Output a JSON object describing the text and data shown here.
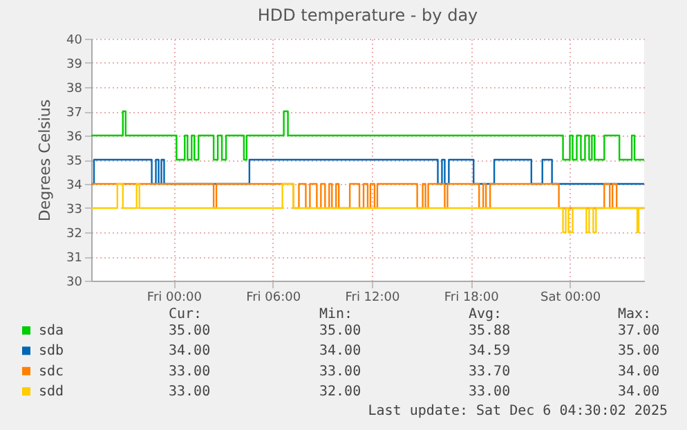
{
  "chart_data": {
    "type": "step",
    "title": "HDD temperature - by day",
    "ylabel": "Degrees Celsius",
    "xlim": [
      "2025-12-04T19:00",
      "2025-12-06T04:30"
    ],
    "xticks": [
      {
        "value": "2025-12-05T00:00",
        "label": "Fri 00:00"
      },
      {
        "value": "2025-12-05T06:00",
        "label": "Fri 06:00"
      },
      {
        "value": "2025-12-05T12:00",
        "label": "Fri 12:00"
      },
      {
        "value": "2025-12-05T18:00",
        "label": "Fri 18:00"
      },
      {
        "value": "2025-12-06T00:00",
        "label": "Sat 00:00"
      }
    ],
    "ylim": [
      30,
      40
    ],
    "yticks": [
      30,
      31,
      32,
      33,
      34,
      35,
      36,
      37,
      38,
      39,
      40
    ],
    "grid": true,
    "legend": "bottom",
    "series": [
      {
        "name": "sda",
        "color": "#00cc00",
        "x": [
          "2025-12-04T19:00",
          "2025-12-04T20:55",
          "2025-12-04T21:05",
          "2025-12-05T00:10",
          "2025-12-05T00:40",
          "2025-12-05T00:50",
          "2025-12-05T01:05",
          "2025-12-05T01:15",
          "2025-12-05T01:30",
          "2025-12-05T02:25",
          "2025-12-05T02:40",
          "2025-12-05T02:55",
          "2025-12-05T03:10",
          "2025-12-05T04:15",
          "2025-12-05T04:25",
          "2025-12-05T06:40",
          "2025-12-05T06:55",
          "2025-12-05T23:35",
          "2025-12-06T00:00",
          "2025-12-06T00:10",
          "2025-12-06T00:25",
          "2025-12-06T00:40",
          "2025-12-06T00:55",
          "2025-12-06T01:10",
          "2025-12-06T01:20",
          "2025-12-06T01:30",
          "2025-12-06T02:05",
          "2025-12-06T03:00",
          "2025-12-06T03:45",
          "2025-12-06T03:55",
          "2025-12-06T04:30"
        ],
        "values": [
          36,
          37,
          36,
          35,
          36,
          35,
          36,
          35,
          36,
          35,
          36,
          35,
          36,
          35,
          36,
          37,
          36,
          35,
          36,
          35,
          36,
          35,
          36,
          35,
          36,
          35,
          36,
          35,
          36,
          35,
          35
        ]
      },
      {
        "name": "sdb",
        "color": "#0066b3",
        "x": [
          "2025-12-04T19:00",
          "2025-12-04T19:10",
          "2025-12-04T22:40",
          "2025-12-04T22:55",
          "2025-12-04T23:05",
          "2025-12-04T23:15",
          "2025-12-04T23:25",
          "2025-12-05T04:35",
          "2025-12-05T16:00",
          "2025-12-05T16:15",
          "2025-12-05T16:25",
          "2025-12-05T16:40",
          "2025-12-05T18:10",
          "2025-12-05T19:25",
          "2025-12-05T21:40",
          "2025-12-05T22:20",
          "2025-12-05T22:55",
          "2025-12-06T04:30"
        ],
        "values": [
          34,
          35,
          34,
          35,
          34,
          35,
          34,
          35,
          34,
          35,
          34,
          35,
          34,
          35,
          34,
          35,
          34,
          34
        ]
      },
      {
        "name": "sdc",
        "color": "#ff8000",
        "x": [
          "2025-12-04T19:00",
          "2025-12-05T02:25",
          "2025-12-05T02:35",
          "2025-12-05T07:15",
          "2025-12-05T07:35",
          "2025-12-05T08:00",
          "2025-12-05T08:15",
          "2025-12-05T08:40",
          "2025-12-05T08:55",
          "2025-12-05T09:10",
          "2025-12-05T09:25",
          "2025-12-05T09:35",
          "2025-12-05T09:50",
          "2025-12-05T10:00",
          "2025-12-05T10:40",
          "2025-12-05T11:15",
          "2025-12-05T11:30",
          "2025-12-05T11:45",
          "2025-12-05T11:55",
          "2025-12-05T12:10",
          "2025-12-05T12:20",
          "2025-12-05T14:45",
          "2025-12-05T15:05",
          "2025-12-05T15:15",
          "2025-12-05T15:25",
          "2025-12-05T16:25",
          "2025-12-05T16:35",
          "2025-12-05T18:30",
          "2025-12-05T18:45",
          "2025-12-05T18:55",
          "2025-12-05T19:10",
          "2025-12-05T23:20",
          "2025-12-06T02:05",
          "2025-12-06T02:25",
          "2025-12-06T02:35",
          "2025-12-06T02:50",
          "2025-12-06T04:30"
        ],
        "values": [
          34,
          33,
          34,
          33,
          34,
          33,
          34,
          33,
          34,
          33,
          34,
          33,
          34,
          33,
          34,
          33,
          34,
          33,
          34,
          33,
          34,
          33,
          34,
          33,
          34,
          33,
          34,
          33,
          34,
          33,
          34,
          33,
          34,
          33,
          34,
          33,
          33
        ]
      },
      {
        "name": "sdd",
        "color": "#ffcc00",
        "x": [
          "2025-12-04T19:00",
          "2025-12-04T20:35",
          "2025-12-04T20:55",
          "2025-12-04T21:45",
          "2025-12-04T21:55",
          "2025-12-05T06:35",
          "2025-12-05T07:15",
          "2025-12-05T23:35",
          "2025-12-05T23:45",
          "2025-12-05T23:55",
          "2025-12-06T00:10",
          "2025-12-06T01:00",
          "2025-12-06T01:10",
          "2025-12-06T01:25",
          "2025-12-06T01:35",
          "2025-12-06T04:05",
          "2025-12-06T04:10",
          "2025-12-06T04:30"
        ],
        "values": [
          33,
          34,
          33,
          34,
          33,
          34,
          33,
          32,
          33,
          32,
          33,
          32,
          33,
          32,
          33,
          32,
          33,
          33
        ]
      }
    ],
    "annotations": [
      "Cur:",
      "Min:",
      "Avg:",
      "Max:",
      "35.00",
      "35.00",
      "35.88",
      "37.00",
      "34.00",
      "34.00",
      "34.59",
      "35.00",
      "33.00",
      "33.00",
      "33.70",
      "34.00",
      "33.00",
      "32.00",
      "33.00",
      "34.00",
      "Last update: Sat Dec  6 04:30:02 2025"
    ]
  }
}
